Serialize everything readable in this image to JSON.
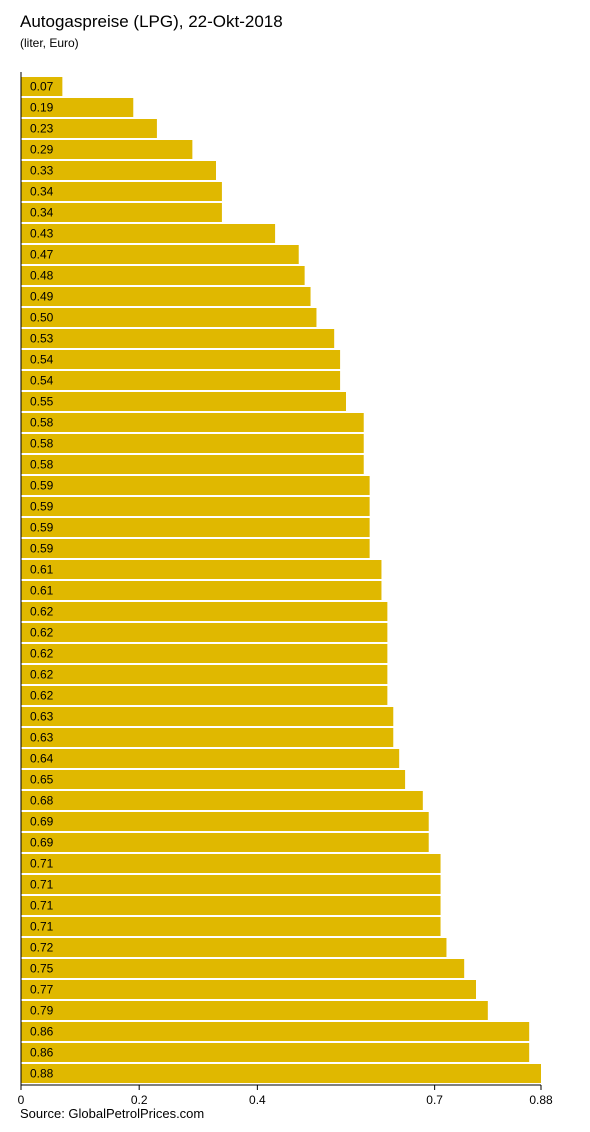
{
  "title": "Autogaspreise (LPG), 22-Okt-2018",
  "subtitle": "(liter, Euro)",
  "source": "Source: GlobalPetrolPrices.com",
  "colors": {
    "bar": "#e0b800",
    "axis": "#000000",
    "text": "#000000"
  },
  "chart_data": {
    "type": "bar",
    "orientation": "horizontal",
    "value_labels": [
      "0.07",
      "0.19",
      "0.23",
      "0.29",
      "0.33",
      "0.34",
      "0.34",
      "0.43",
      "0.47",
      "0.48",
      "0.49",
      "0.50",
      "0.53",
      "0.54",
      "0.54",
      "0.55",
      "0.58",
      "0.58",
      "0.58",
      "0.59",
      "0.59",
      "0.59",
      "0.59",
      "0.61",
      "0.61",
      "0.62",
      "0.62",
      "0.62",
      "0.62",
      "0.62",
      "0.63",
      "0.63",
      "0.64",
      "0.65",
      "0.68",
      "0.69",
      "0.69",
      "0.71",
      "0.71",
      "0.71",
      "0.71",
      "0.72",
      "0.75",
      "0.77",
      "0.79",
      "0.86",
      "0.86",
      "0.88"
    ],
    "values": [
      0.07,
      0.19,
      0.23,
      0.29,
      0.33,
      0.34,
      0.34,
      0.43,
      0.47,
      0.48,
      0.49,
      0.5,
      0.53,
      0.54,
      0.54,
      0.55,
      0.58,
      0.58,
      0.58,
      0.59,
      0.59,
      0.59,
      0.59,
      0.61,
      0.61,
      0.62,
      0.62,
      0.62,
      0.62,
      0.62,
      0.63,
      0.63,
      0.64,
      0.65,
      0.68,
      0.69,
      0.69,
      0.71,
      0.71,
      0.71,
      0.71,
      0.72,
      0.75,
      0.77,
      0.79,
      0.86,
      0.86,
      0.88
    ],
    "xlim": [
      0,
      0.88
    ],
    "xticks": [
      0,
      0.2,
      0.4,
      0.7,
      0.88
    ],
    "xtick_labels": [
      "0",
      "0.2",
      "0.4",
      "0.7",
      "0.88"
    ],
    "grid": false,
    "legend": "none"
  }
}
